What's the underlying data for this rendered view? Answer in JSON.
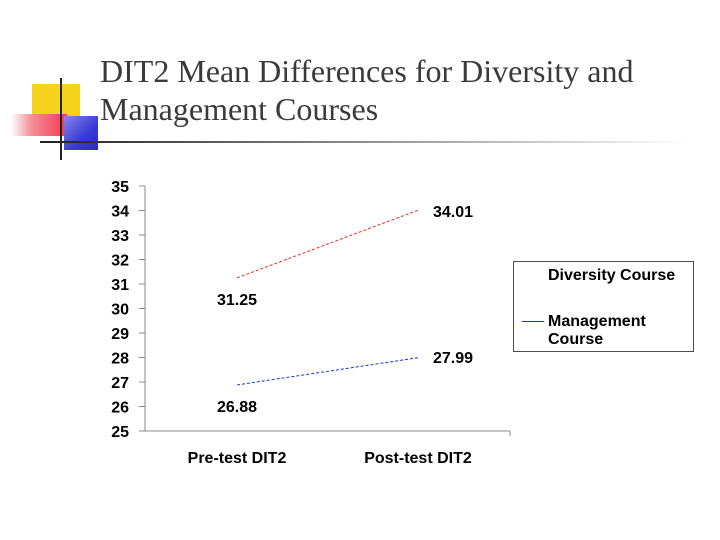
{
  "slide": {
    "title": "DIT2 Mean Differences for Diversity and Management Courses"
  },
  "chart_data": {
    "type": "line",
    "title": "",
    "xlabel": "",
    "ylabel": "",
    "categories": [
      "Pre-test DIT2",
      "Post-test DIT2"
    ],
    "ylim": [
      25,
      35
    ],
    "yticks": [
      25,
      26,
      27,
      28,
      29,
      30,
      31,
      32,
      33,
      34,
      35
    ],
    "grid": false,
    "legend_position": "right",
    "series": [
      {
        "name": "Diversity Course",
        "values": [
          31.25,
          34.01
        ],
        "color": "#e03020",
        "line_style": "dashed"
      },
      {
        "name": "Management Course",
        "values": [
          26.88,
          27.99
        ],
        "color": "#1a33cc",
        "line_style": "dashed"
      }
    ]
  },
  "colors": {
    "deco_yellow": "#f5d21c",
    "deco_red": "#f23a4e",
    "deco_blue": "#3a3ad6",
    "title_text": "#3a3a3a"
  }
}
